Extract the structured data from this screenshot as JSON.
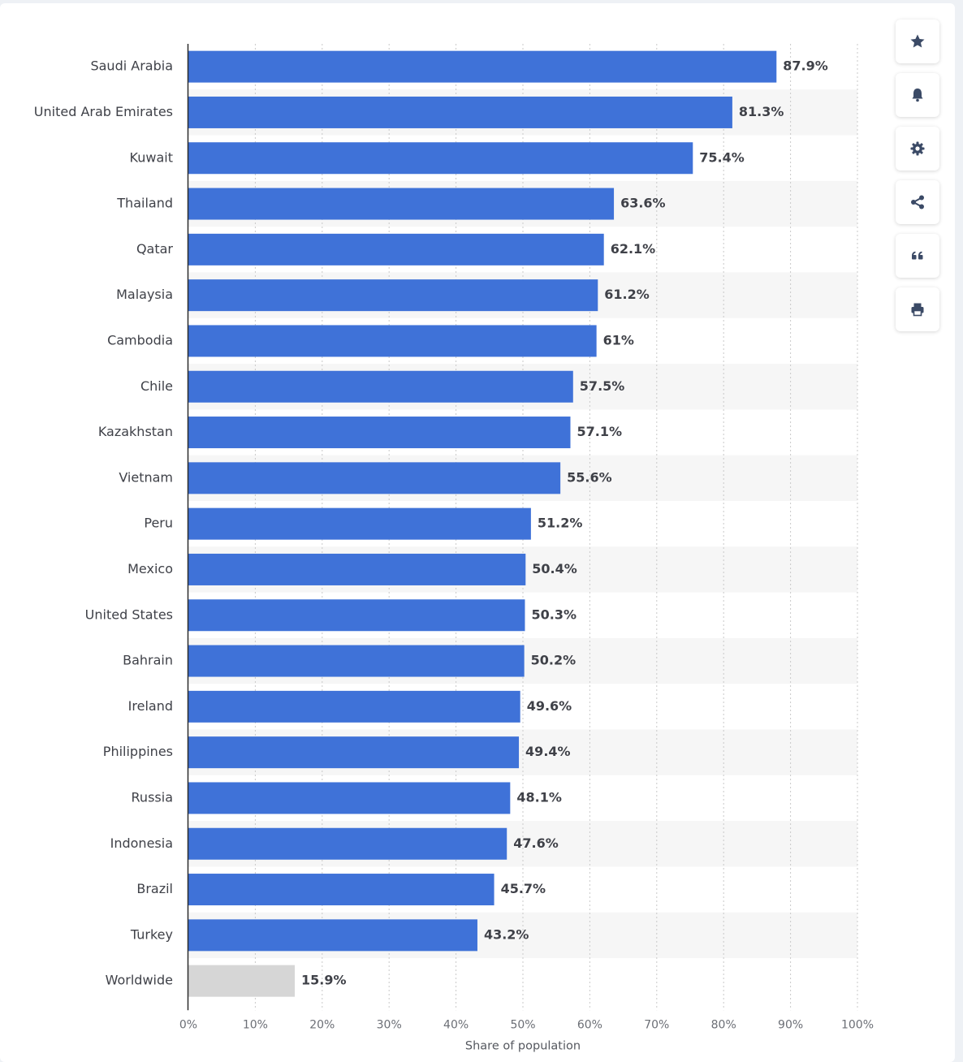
{
  "chart_data": {
    "type": "bar",
    "orientation": "horizontal",
    "categories": [
      "Saudi Arabia",
      "United Arab Emirates",
      "Kuwait",
      "Thailand",
      "Qatar",
      "Malaysia",
      "Cambodia",
      "Chile",
      "Kazakhstan",
      "Vietnam",
      "Peru",
      "Mexico",
      "United States",
      "Bahrain",
      "Ireland",
      "Philippines",
      "Russia",
      "Indonesia",
      "Brazil",
      "Turkey",
      "Worldwide"
    ],
    "values": [
      87.9,
      81.3,
      75.4,
      63.6,
      62.1,
      61.2,
      61,
      57.5,
      57.1,
      55.6,
      51.2,
      50.4,
      50.3,
      50.2,
      49.6,
      49.4,
      48.1,
      47.6,
      45.7,
      43.2,
      15.9
    ],
    "value_labels": [
      "87.9%",
      "81.3%",
      "75.4%",
      "63.6%",
      "62.1%",
      "61.2%",
      "61%",
      "57.5%",
      "57.1%",
      "55.6%",
      "51.2%",
      "50.4%",
      "50.3%",
      "50.2%",
      "49.6%",
      "49.4%",
      "48.1%",
      "47.6%",
      "45.7%",
      "43.2%",
      "15.9%"
    ],
    "highlight": [
      "Worldwide"
    ],
    "xlabel": "Share of population",
    "ylabel": "",
    "xlim": [
      0,
      100
    ],
    "ticks": [
      0,
      10,
      20,
      30,
      40,
      50,
      60,
      70,
      80,
      90,
      100
    ],
    "tick_labels": [
      "0%",
      "10%",
      "20%",
      "30%",
      "40%",
      "50%",
      "60%",
      "70%",
      "80%",
      "90%",
      "100%"
    ],
    "grid": true,
    "colors": {
      "bar": "#3f72d8",
      "highlight_bar": "#d6d6d6",
      "band": "#f6f6f6",
      "grid": "#c9c9c9"
    }
  },
  "toolbar": [
    {
      "name": "favorite-button",
      "icon": "star-icon"
    },
    {
      "name": "notification-button",
      "icon": "bell-icon"
    },
    {
      "name": "settings-button",
      "icon": "gear-icon"
    },
    {
      "name": "share-button",
      "icon": "share-icon"
    },
    {
      "name": "cite-button",
      "icon": "quote-icon"
    },
    {
      "name": "print-button",
      "icon": "printer-icon"
    }
  ]
}
